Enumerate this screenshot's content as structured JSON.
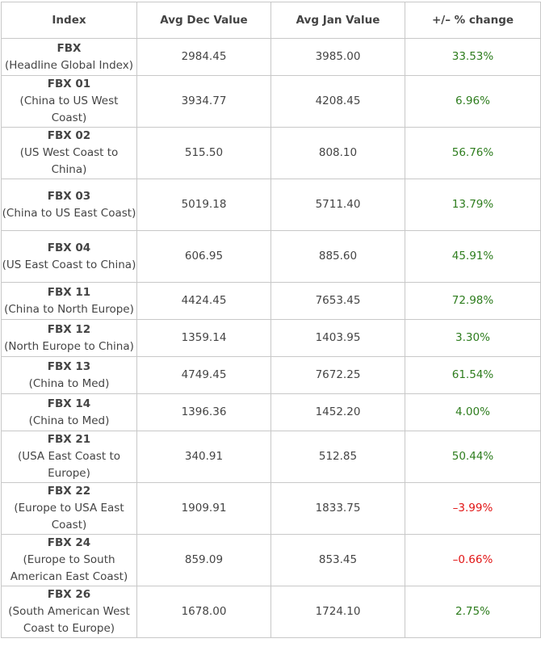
{
  "header": {
    "index": "Index",
    "dec": "Avg Dec Value",
    "jan": "Avg Jan Value",
    "change": "+/– % change"
  },
  "rows": [
    {
      "code": "FBX",
      "desc": "(Headline Global Index)",
      "dec": "2984.45",
      "jan": "3985.00",
      "change": "33.53%"
    },
    {
      "code": "FBX 01",
      "desc": "(China to US West Coast)",
      "dec": "3934.77",
      "jan": "4208.45",
      "change": "6.96%"
    },
    {
      "code": "FBX 02",
      "desc": "(US West Coast to China)",
      "dec": "515.50",
      "jan": "808.10",
      "change": "56.76%"
    },
    {
      "code": "FBX 03",
      "desc": "(China to US East Coast)",
      "dec": "5019.18",
      "jan": "5711.40",
      "change": "13.79%"
    },
    {
      "code": "FBX 04",
      "desc": "(US East Coast to China)",
      "dec": "606.95",
      "jan": "885.60",
      "change": "45.91%"
    },
    {
      "code": "FBX 11",
      "desc": "(China to North Europe)",
      "dec": "4424.45",
      "jan": "7653.45",
      "change": "72.98%"
    },
    {
      "code": "FBX 12",
      "desc": "(North Europe to China)",
      "dec": "1359.14",
      "jan": "1403.95",
      "change": "3.30%"
    },
    {
      "code": "FBX 13",
      "desc": "(China to Med)",
      "dec": "4749.45",
      "jan": "7672.25",
      "change": "61.54%"
    },
    {
      "code": "FBX 14",
      "desc": "(China to Med)",
      "dec": "1396.36",
      "jan": "1452.20",
      "change": "4.00%"
    },
    {
      "code": "FBX 21",
      "desc": "(USA East Coast to Europe)",
      "dec": "340.91",
      "jan": "512.85",
      "change": "50.44%"
    },
    {
      "code": "FBX 22",
      "desc": "(Europe to USA East Coast)",
      "dec": "1909.91",
      "jan": "1833.75",
      "change": "–3.99%"
    },
    {
      "code": "FBX 24",
      "desc": "(Europe to South American East Coast)",
      "dec": "859.09",
      "jan": "853.45",
      "change": "–0.66%"
    },
    {
      "code": "FBX 26",
      "desc": "(South American West Coast to Europe)",
      "dec": "1678.00",
      "jan": "1724.10",
      "change": "2.75%"
    }
  ],
  "colors": {
    "positive": "#2e7d1e",
    "negative": "#e11414",
    "text": "#444444",
    "border": "#c8c8c8"
  }
}
